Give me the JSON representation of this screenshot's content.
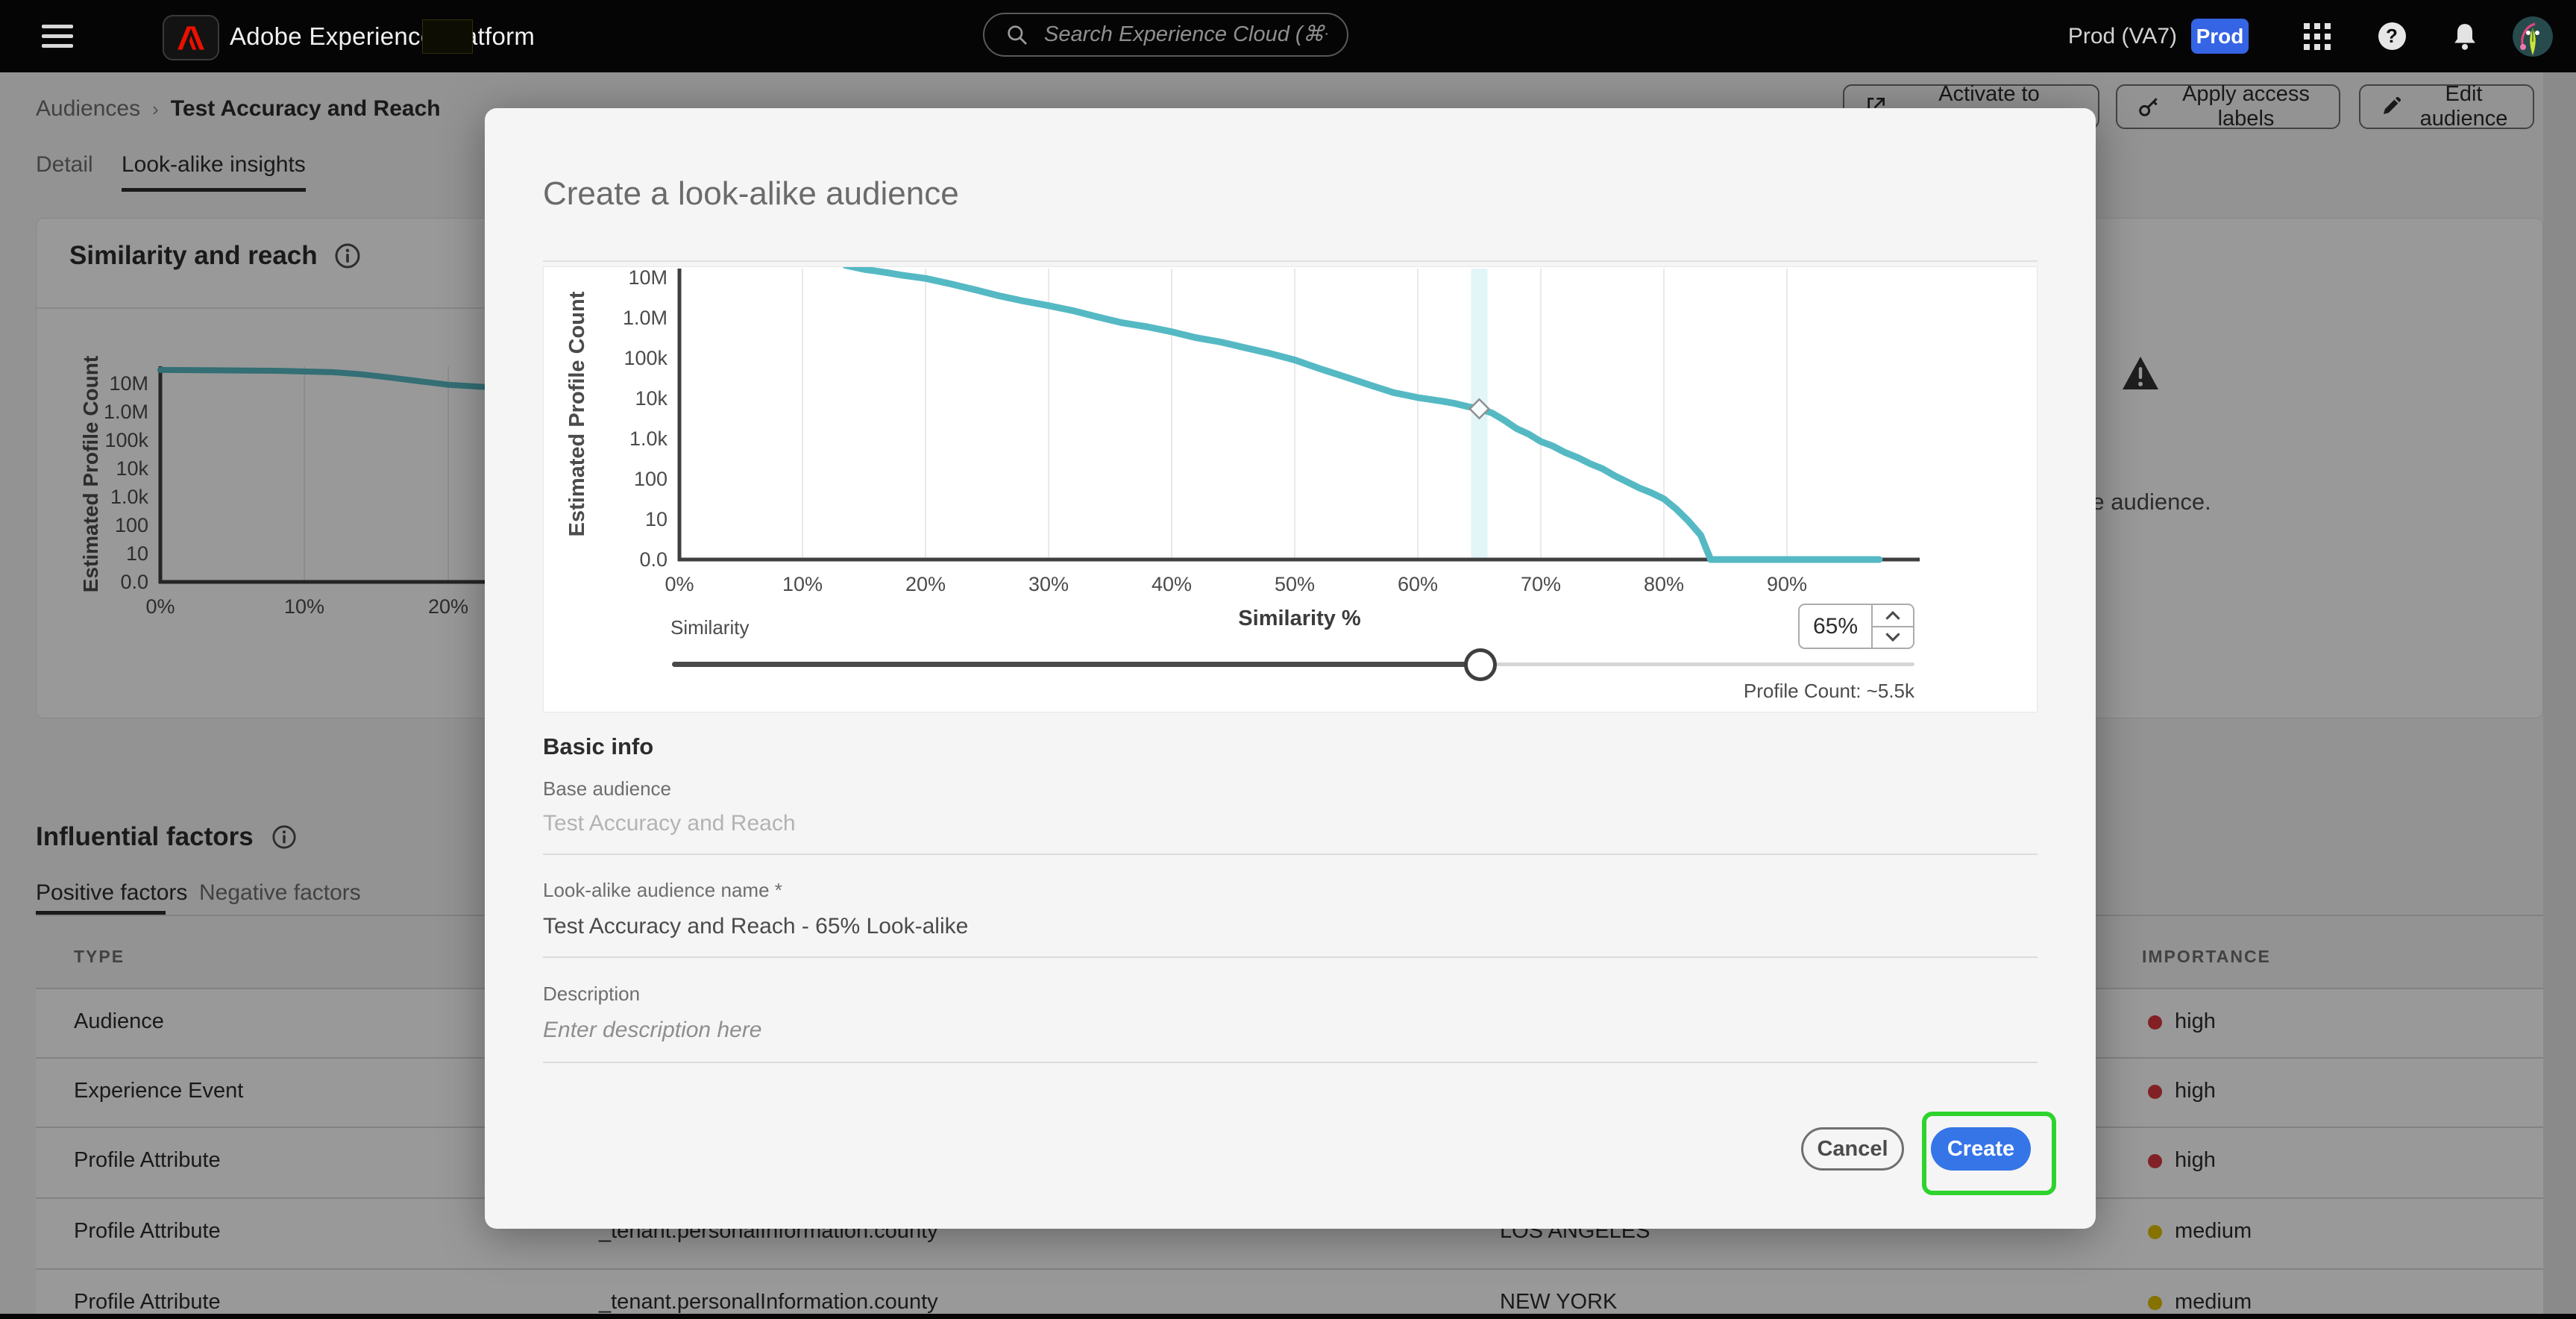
{
  "topbar": {
    "app_title": "Adobe Experience Platform",
    "search_placeholder": "Search Experience Cloud (⌘+/)",
    "org": "Prod (VA7)",
    "env_badge": "Prod",
    "badge_color": "#3564e4"
  },
  "breadcrumb": {
    "parent": "Audiences",
    "separator": "›",
    "current": "Test Accuracy and Reach"
  },
  "actions": [
    {
      "label": "Activate to destination"
    },
    {
      "label": "Apply access labels"
    },
    {
      "label": "Edit audience"
    }
  ],
  "page_tabs": [
    {
      "label": "Detail",
      "active": false
    },
    {
      "label": "Look-alike insights",
      "active": true
    }
  ],
  "similarity_panel": {
    "title": "Similarity and reach"
  },
  "empty_state": {
    "message": "No look-alike audiences were created for this base audience."
  },
  "influential": {
    "title": "Influential factors",
    "tabs": [
      {
        "label": "Positive factors",
        "active": true
      },
      {
        "label": "Negative factors",
        "active": false
      }
    ],
    "columns": {
      "type": "TYPE",
      "importance": "IMPORTANCE"
    },
    "importance_colors": {
      "high": "#d7373f",
      "medium": "#dfbf00"
    },
    "rows": [
      {
        "type": "Audience",
        "attribute": "",
        "value": "",
        "importance": "high"
      },
      {
        "type": "Experience Event",
        "attribute": "",
        "value": "",
        "importance": "high"
      },
      {
        "type": "Profile Attribute",
        "attribute": "",
        "value": "",
        "importance": "high"
      },
      {
        "type": "Profile Attribute",
        "attribute": "_tenant.personalInformation.county",
        "value": "LOS ANGELES",
        "importance": "medium"
      },
      {
        "type": "Profile Attribute",
        "attribute": "_tenant.personalInformation.county",
        "value": "NEW YORK",
        "importance": "medium"
      }
    ]
  },
  "modal": {
    "title": "Create a look-alike audience",
    "slider_label": "Similarity",
    "similarity_value": "65%",
    "profile_count": "Profile Count: ~5.5k",
    "section_heading": "Basic info",
    "base_audience_label": "Base audience",
    "base_audience_value": "Test Accuracy and Reach",
    "name_label": "Look-alike audience name",
    "required_marker": "*",
    "name_value": "Test Accuracy and Reach - 65% Look-alike",
    "description_label": "Description",
    "description_placeholder": "Enter description here",
    "cancel_label": "Cancel",
    "create_label": "Create",
    "create_color": "#3575e8",
    "highlight_color": "#2ed32e"
  },
  "chart_data": [
    {
      "id": "modal_lookalike_curve",
      "type": "line",
      "title": "",
      "xlabel": "Similarity %",
      "ylabel": "Estimated Profile Count",
      "line_color": "#55b9c4",
      "ytick_labels": [
        "0.0",
        "10",
        "100",
        "1.0k",
        "10k",
        "100k",
        "1.0M",
        "10M"
      ],
      "xtick_labels": [
        "0%",
        "10%",
        "20%",
        "30%",
        "40%",
        "50%",
        "60%",
        "70%",
        "80%",
        "90%"
      ],
      "xlim": [
        0,
        101
      ],
      "selected_similarity_pct": 65,
      "marker_point": [
        65,
        5500
      ],
      "points": [
        [
          13.5,
          20000000
        ],
        [
          15,
          16000000
        ],
        [
          16,
          14500000
        ],
        [
          17,
          13000000
        ],
        [
          18,
          11500000
        ],
        [
          20,
          9500000
        ],
        [
          22,
          7000000
        ],
        [
          24,
          5000000
        ],
        [
          26,
          3500000
        ],
        [
          28,
          2600000
        ],
        [
          30,
          2000000
        ],
        [
          32,
          1500000
        ],
        [
          34,
          1050000
        ],
        [
          36,
          750000
        ],
        [
          38,
          600000
        ],
        [
          40,
          450000
        ],
        [
          42,
          320000
        ],
        [
          44,
          250000
        ],
        [
          46,
          180000
        ],
        [
          48,
          130000
        ],
        [
          50,
          90000
        ],
        [
          52,
          55000
        ],
        [
          54,
          35000
        ],
        [
          56,
          22000
        ],
        [
          58,
          14000
        ],
        [
          60,
          10500
        ],
        [
          62,
          8500
        ],
        [
          63,
          7500
        ],
        [
          64,
          6300
        ],
        [
          65,
          5500
        ],
        [
          66,
          4400
        ],
        [
          67,
          2900
        ],
        [
          68,
          1800
        ],
        [
          69,
          1300
        ],
        [
          70,
          850
        ],
        [
          71,
          650
        ],
        [
          72,
          450
        ],
        [
          73,
          340
        ],
        [
          74,
          240
        ],
        [
          75,
          180
        ],
        [
          76,
          120
        ],
        [
          77,
          85
        ],
        [
          78,
          60
        ],
        [
          79,
          45
        ],
        [
          80,
          32
        ],
        [
          81,
          18
        ],
        [
          82,
          9
        ],
        [
          83,
          4
        ],
        [
          83.8,
          1
        ],
        [
          84,
          0
        ],
        [
          97.5,
          0
        ]
      ]
    },
    {
      "id": "background_similarity_curve",
      "type": "line",
      "title": "Similarity and reach",
      "xlabel": "",
      "ylabel": "Estimated Profile Count",
      "line_color": "#55b9c4",
      "ytick_labels": [
        "0.0",
        "10",
        "100",
        "1.0k",
        "10k",
        "100k",
        "1.0M",
        "10M"
      ],
      "xtick_labels": [
        "0%",
        "10%",
        "20%"
      ],
      "xlim": [
        0,
        24
      ],
      "points": [
        [
          0,
          30000000
        ],
        [
          4,
          29000000
        ],
        [
          8,
          28000000
        ],
        [
          12,
          25000000
        ],
        [
          14,
          21000000
        ],
        [
          16,
          16000000
        ],
        [
          18,
          12000000
        ],
        [
          20,
          9000000
        ],
        [
          22,
          7800000
        ],
        [
          24,
          7000000
        ]
      ]
    }
  ]
}
